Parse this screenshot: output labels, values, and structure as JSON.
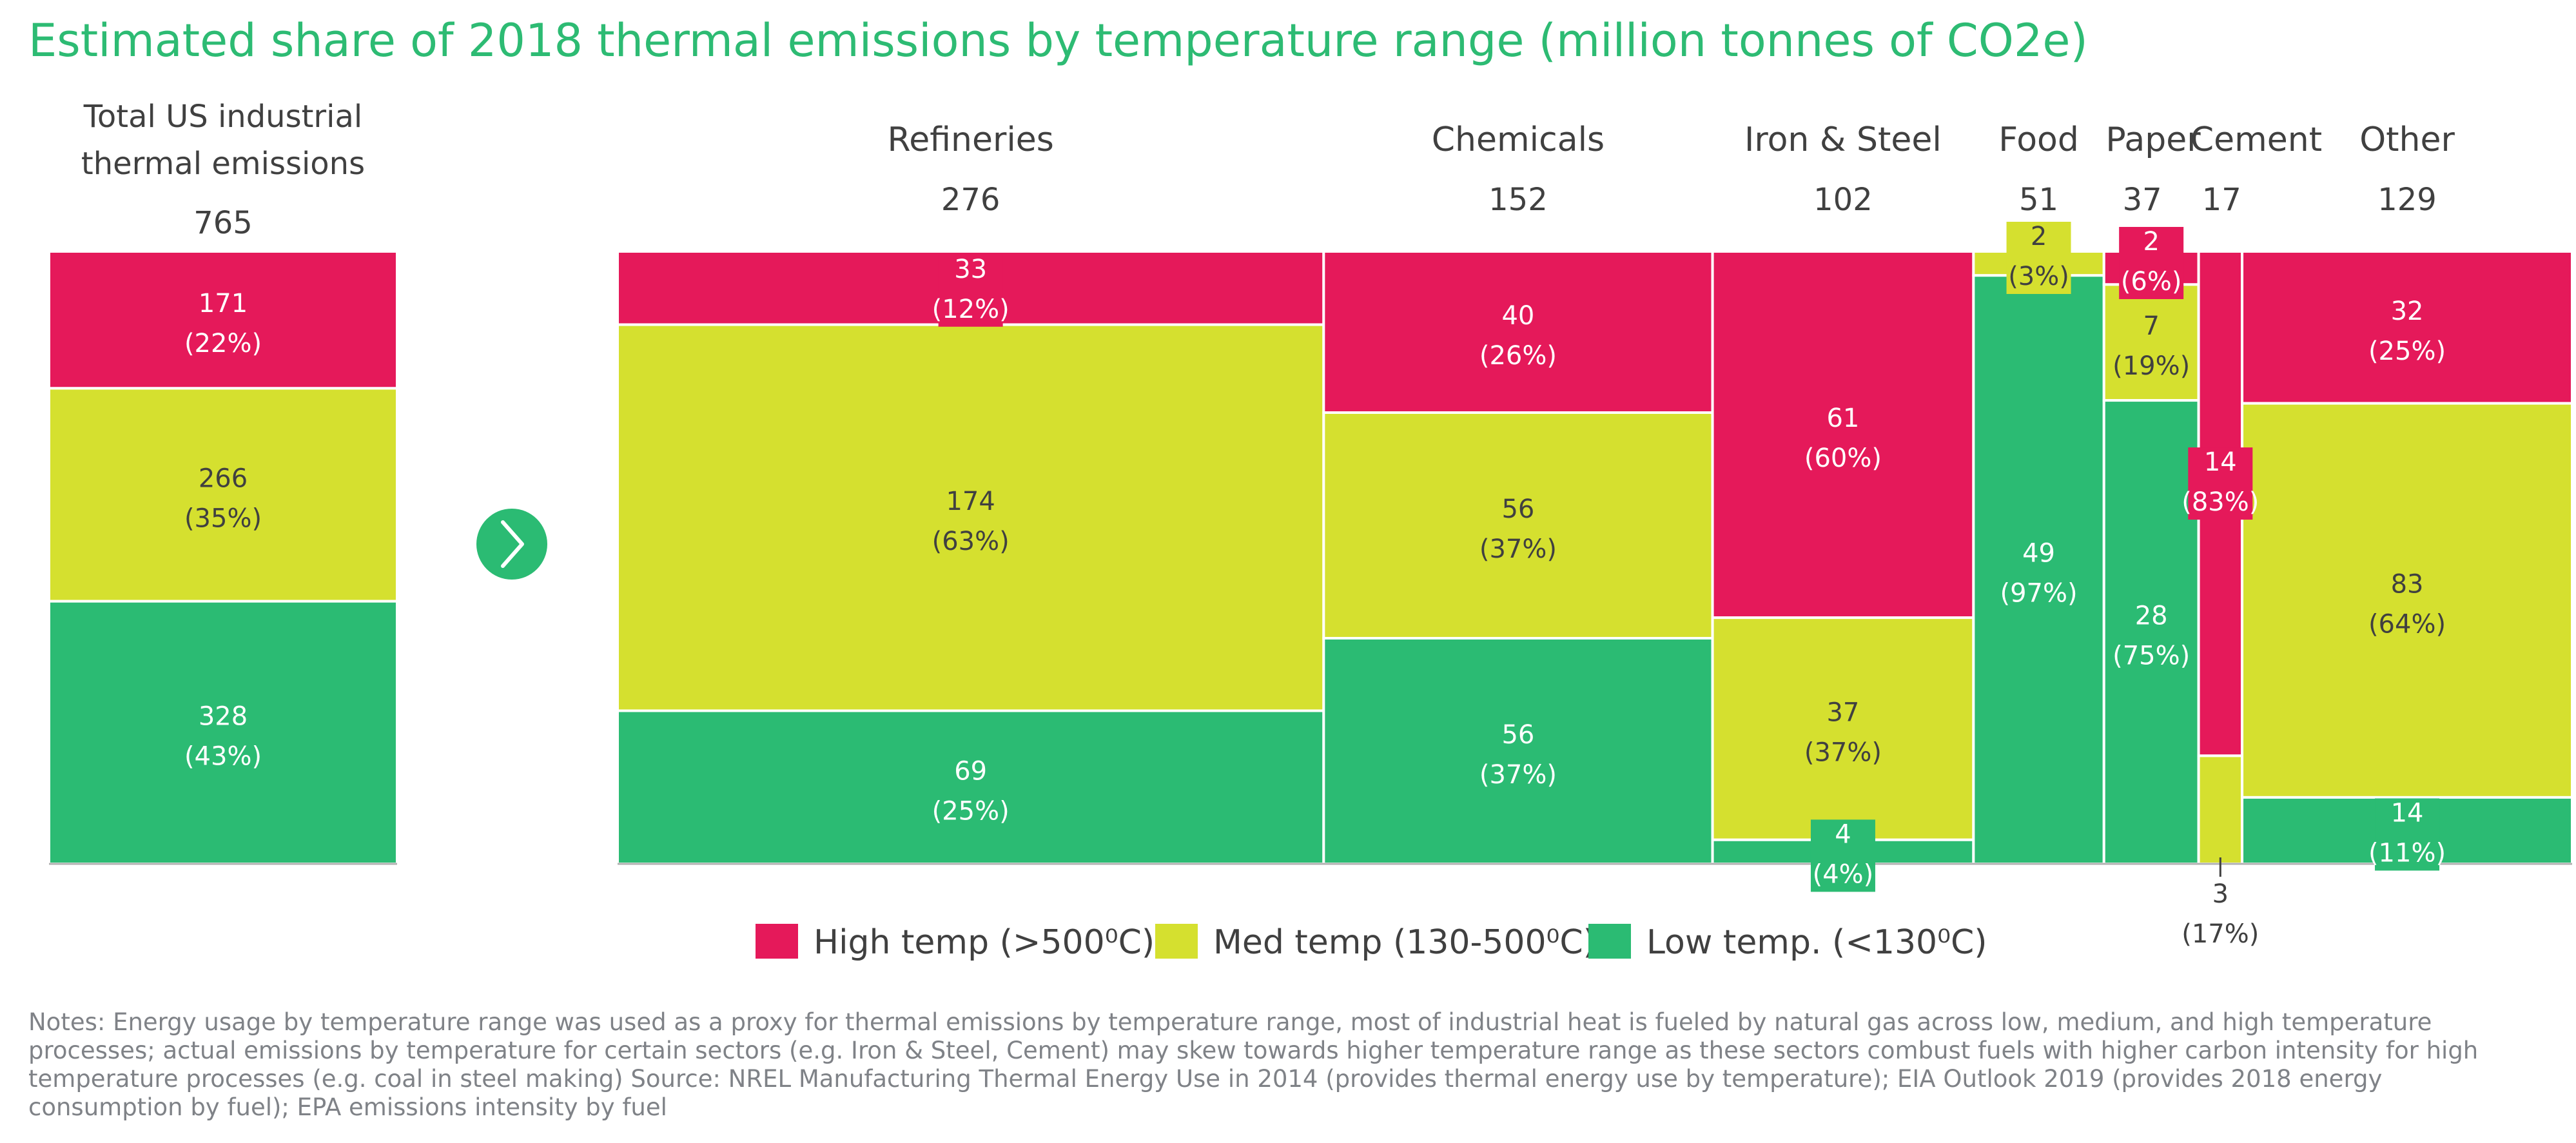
{
  "chart_data": {
    "type": "marimekko",
    "title": "Estimated share of 2018 thermal emissions by temperature range (million tonnes of CO2e)",
    "unit": "million tonnes of CO2e",
    "series": [
      {
        "key": "high",
        "name": "High temp (>500⁰C)",
        "color": "#e5195a"
      },
      {
        "key": "med",
        "name": "Med temp (130-500⁰C)",
        "color": "#d5e02f"
      },
      {
        "key": "low",
        "name": "Low temp. (<130⁰C)",
        "color": "#2bbb73"
      }
    ],
    "total": {
      "label_line1": "Total US industrial",
      "label_line2": "thermal emissions",
      "total_label": "765",
      "total": 765,
      "segments": {
        "high": {
          "value": 171,
          "label": "171",
          "pct_label": "(22%)"
        },
        "med": {
          "value": 266,
          "label": "266",
          "pct_label": "(35%)"
        },
        "low": {
          "value": 328,
          "label": "328",
          "pct_label": "(43%)"
        }
      }
    },
    "sectors": [
      {
        "name": "Refineries",
        "total": 276,
        "total_label": "276",
        "segments": {
          "high": {
            "value": 33,
            "label": "33",
            "pct_label": "(12%)"
          },
          "med": {
            "value": 174,
            "label": "174",
            "pct_label": "(63%)"
          },
          "low": {
            "value": 69,
            "label": "69",
            "pct_label": "(25%)"
          }
        }
      },
      {
        "name": "Chemicals",
        "total": 152,
        "total_label": "152",
        "segments": {
          "high": {
            "value": 40,
            "label": "40",
            "pct_label": "(26%)"
          },
          "med": {
            "value": 56,
            "label": "56",
            "pct_label": "(37%)"
          },
          "low": {
            "value": 56,
            "label": "56",
            "pct_label": "(37%)"
          }
        }
      },
      {
        "name": "Iron & Steel",
        "total": 102,
        "total_label": "102",
        "segments": {
          "high": {
            "value": 61,
            "label": "61",
            "pct_label": "(60%)"
          },
          "med": {
            "value": 37,
            "label": "37",
            "pct_label": "(37%)"
          },
          "low": {
            "value": 4,
            "label": "4",
            "pct_label": "(4%)"
          }
        }
      },
      {
        "name": "Food",
        "total": 51,
        "total_label": "51",
        "segments": {
          "high": {
            "value": 0,
            "label": "",
            "pct_label": ""
          },
          "med": {
            "value": 2,
            "label": "2",
            "pct_label": "(3%)"
          },
          "low": {
            "value": 49,
            "label": "49",
            "pct_label": "(97%)"
          }
        }
      },
      {
        "name": "Paper",
        "total": 37,
        "total_label": "37",
        "segments": {
          "high": {
            "value": 2,
            "label": "2",
            "pct_label": "(6%)"
          },
          "med": {
            "value": 7,
            "label": "7",
            "pct_label": "(19%)"
          },
          "low": {
            "value": 28,
            "label": "28",
            "pct_label": "(75%)"
          }
        }
      },
      {
        "name": "Cement",
        "total": 17,
        "total_label": "17",
        "segments": {
          "high": {
            "value": 14,
            "label": "14",
            "pct_label": "(83%)"
          },
          "med": {
            "value": 3,
            "label": "3",
            "pct_label": "(17%)"
          },
          "low": {
            "value": 0,
            "label": "",
            "pct_label": ""
          }
        }
      },
      {
        "name": "Other",
        "total": 129,
        "total_label": "129",
        "segments": {
          "high": {
            "value": 32,
            "label": "32",
            "pct_label": "(25%)"
          },
          "med": {
            "value": 83,
            "label": "83",
            "pct_label": "(64%)"
          },
          "low": {
            "value": 14,
            "label": "14",
            "pct_label": "(11%)"
          }
        }
      }
    ],
    "annotations": [
      "arrow-icon between total bar and sector breakdown"
    ]
  },
  "notes": "Notes: Energy usage by temperature range was used as a proxy for thermal emissions by temperature range, most of industrial heat is fueled by natural gas across low, medium, and high temperature processes; actual emissions by temperature for certain sectors (e.g. Iron & Steel, Cement) may skew towards higher temperature range as these sectors combust fuels with higher carbon intensity for high temperature processes (e.g. coal in steel making)  Source: NREL Manufacturing Thermal Energy Use in 2014 (provides thermal energy use by temperature); EIA Outlook 2019 (provides 2018 energy consumption by fuel); EPA emissions intensity by fuel",
  "colors": {
    "title": "#2dbb73",
    "text": "#404040",
    "notes": "#7f8287",
    "arrow_circle": "#2bbb73"
  }
}
